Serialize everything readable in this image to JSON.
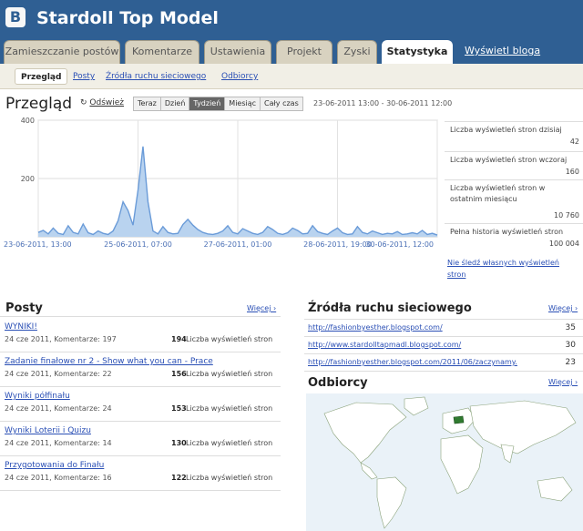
{
  "header": {
    "logo_glyph": "B",
    "title": "Stardoll Top Model"
  },
  "tabs": [
    "Zamieszczanie postów",
    "Komentarze",
    "Ustawienia",
    "Projekt",
    "Zyski",
    "Statystyka"
  ],
  "active_tab": "Statystyka",
  "view_blog": "Wyświetl bloga",
  "subtabs": [
    "Przegląd",
    "Posty",
    "Źródła ruchu sieciowego",
    "Odbiorcy"
  ],
  "overview": {
    "title": "Przegląd",
    "refresh_label": "Odśwież",
    "ranges": [
      "Teraz",
      "Dzień",
      "Tydzień",
      "Miesiąc",
      "Cały czas"
    ],
    "active_range": "Tydzień",
    "date_range": "23-06-2011 13:00 - 30-06-2011 12:00"
  },
  "chart_data": {
    "type": "area",
    "ylim": [
      0,
      400
    ],
    "yticks": [
      "400",
      "200"
    ],
    "xticks": [
      "23-06-2011, 13:00",
      "25-06-2011, 07:00",
      "27-06-2011, 01:00",
      "28-06-2011, 19:00",
      "30-06-2011, 12:00"
    ],
    "values": [
      15,
      22,
      10,
      30,
      12,
      8,
      38,
      15,
      10,
      44,
      14,
      8,
      20,
      12,
      8,
      20,
      55,
      120,
      90,
      40,
      160,
      310,
      120,
      20,
      10,
      35,
      15,
      10,
      12,
      42,
      60,
      40,
      25,
      15,
      10,
      8,
      12,
      20,
      38,
      15,
      10,
      28,
      20,
      12,
      8,
      15,
      35,
      25,
      12,
      8,
      14,
      30,
      22,
      10,
      12,
      38,
      18,
      12,
      8,
      20,
      30,
      14,
      8,
      10,
      35,
      15,
      10,
      20,
      14,
      8,
      12,
      10,
      18,
      8,
      10,
      14,
      10,
      22,
      8,
      12,
      6
    ],
    "fill": "#b9d3ef",
    "line": "#6a9bd8"
  },
  "stats": [
    {
      "label": "Liczba wyświetleń stron dzisiaj",
      "value": "42"
    },
    {
      "label": "Liczba wyświetleń stron wczoraj",
      "value": "160"
    },
    {
      "label": "Liczba wyświetleń stron w ostatnim miesiącu",
      "value": "10 760"
    },
    {
      "label": "Pełna historia wyświetleń stron",
      "value": "100 004"
    }
  ],
  "nofollow": "Nie śledź własnych wyświetleń stron",
  "posts": {
    "title": "Posty",
    "more": "Więcej ›",
    "unit": "Liczba wyświetleń stron",
    "items": [
      {
        "title": "WYNIKI!",
        "meta": "24 cze 2011, Komentarze: 197",
        "count": "194"
      },
      {
        "title": "Zadanie finałowe nr 2 - Show what you can - Prace",
        "meta": "24 cze 2011, Komentarze: 22",
        "count": "156"
      },
      {
        "title": "Wyniki półfinału",
        "meta": "24 cze 2011, Komentarze: 24",
        "count": "153"
      },
      {
        "title": "Wyniki Loterii i Quizu",
        "meta": "24 cze 2011, Komentarze: 14",
        "count": "130"
      },
      {
        "title": "Przygotowania do Finału",
        "meta": "24 cze 2011, Komentarze: 16",
        "count": "122"
      }
    ]
  },
  "sources": {
    "title": "Źródła ruchu sieciowego",
    "more": "Więcej ›",
    "items": [
      {
        "url": "http://fashionbyesther.blogspot.com/",
        "count": "35"
      },
      {
        "url": "http://www.stardolltapmadl.blogspot.com/",
        "count": "30"
      },
      {
        "url": "http://fashionbyesther.blogspot.com/2011/06/zaczynamy.",
        "count": "23"
      }
    ]
  },
  "audience": {
    "title": "Odbiorcy",
    "more": "Więcej ›"
  }
}
